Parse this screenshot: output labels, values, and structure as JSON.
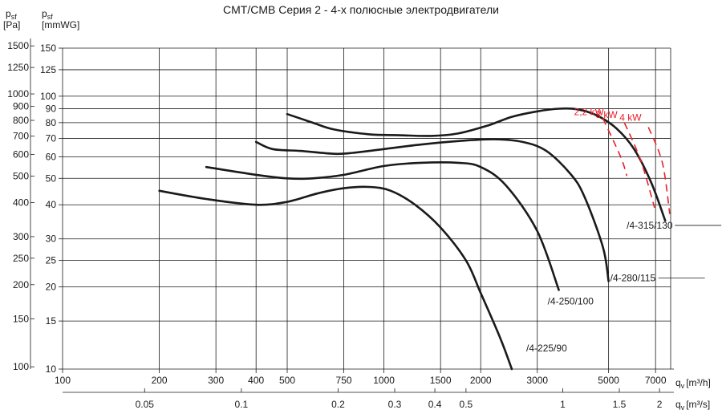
{
  "chart_data": {
    "type": "line",
    "title": "CMT/CMB   Серия 2 - 4-х полюсные электродвигатели",
    "y_axes": {
      "left_outer_label_main": "p",
      "left_outer_label_sub": "sf",
      "left_outer_unit": "[Pa]",
      "left_inner_label_main": "p",
      "left_inner_label_sub": "sf",
      "left_inner_unit": "[mmWG]"
    },
    "x_axes": {
      "top_label": "q",
      "top_sub": "v",
      "top_unit": "[m³/h]",
      "bottom_label": "q",
      "bottom_sub": "v",
      "bottom_unit": "[m³/s]"
    },
    "scale": "log-log",
    "xlim_m3h": [
      100,
      7800
    ],
    "ylim_mmwg": [
      10,
      150
    ],
    "ticks_m3h": [
      "100",
      "200",
      "300",
      "400",
      "500",
      "750",
      "1000",
      "1500",
      "2000",
      "3000",
      "5000",
      "7000"
    ],
    "ticks_m3s": [
      "0.05",
      "0.1",
      "0.2",
      "0.3",
      "0.4",
      "0.5",
      "1",
      "1.5",
      "2"
    ],
    "ticks_mmwg": [
      "150",
      "125",
      "100",
      "90",
      "80",
      "70",
      "60",
      "50",
      "40",
      "30",
      "25",
      "20",
      "15",
      "10"
    ],
    "ticks_pa": [
      "1500",
      "1250",
      "1000",
      "900",
      "800",
      "700",
      "600",
      "500",
      "400",
      "300",
      "250",
      "200",
      "150",
      "100"
    ],
    "series": [
      {
        "name": "/4-225/90",
        "x": [
          200,
          280,
          400,
          500,
          620,
          750,
          900,
          1050,
          1250,
          1500,
          1800,
          2000,
          2300,
          2500
        ],
        "y": [
          45,
          42,
          40,
          41,
          44,
          46,
          46.5,
          45,
          40,
          33,
          25,
          19,
          13,
          10
        ]
      },
      {
        "name": "/4-250/100",
        "x": [
          280,
          400,
          500,
          600,
          750,
          1000,
          1300,
          1700,
          2000,
          2400,
          3000,
          3500
        ],
        "y": [
          55,
          51.5,
          50,
          50,
          51.5,
          55.5,
          57,
          57,
          55,
          47,
          32,
          19.5
        ]
      },
      {
        "name": "/4-280/115",
        "x": [
          400,
          450,
          550,
          700,
          800,
          1000,
          1300,
          1700,
          2200,
          2700,
          3200,
          3800,
          4200,
          4800,
          5000
        ],
        "y": [
          68,
          64,
          63,
          61.5,
          62,
          64,
          66.5,
          68.5,
          69.5,
          68,
          63,
          52,
          43,
          28,
          21
        ]
      },
      {
        "name": "/4-315/130",
        "x": [
          500,
          600,
          700,
          900,
          1100,
          1400,
          1700,
          2100,
          2500,
          3000,
          3500,
          4000,
          4600,
          5300,
          6000,
          6800,
          7500
        ],
        "y": [
          86,
          80,
          75.5,
          72.5,
          72,
          71.5,
          73,
          78,
          84,
          88,
          90,
          89.5,
          85,
          76,
          64,
          48,
          35
        ]
      }
    ],
    "motor_limits": [
      {
        "name": "2,2 kW",
        "x": [
          4800,
          5450,
          5700
        ],
        "y": [
          83,
          60,
          51
        ]
      },
      {
        "name": "3 kW",
        "x": [
          5600,
          6300,
          6950
        ],
        "y": [
          80,
          58,
          39
        ]
      },
      {
        "name": "4 kW",
        "x": [
          6650,
          7350,
          7750
        ],
        "y": [
          77,
          57,
          37
        ]
      }
    ],
    "colors": {
      "curve": "#1a1a1a",
      "motor_limit": "#e8202a",
      "grid": "#1a1a1a"
    },
    "grid": true
  }
}
